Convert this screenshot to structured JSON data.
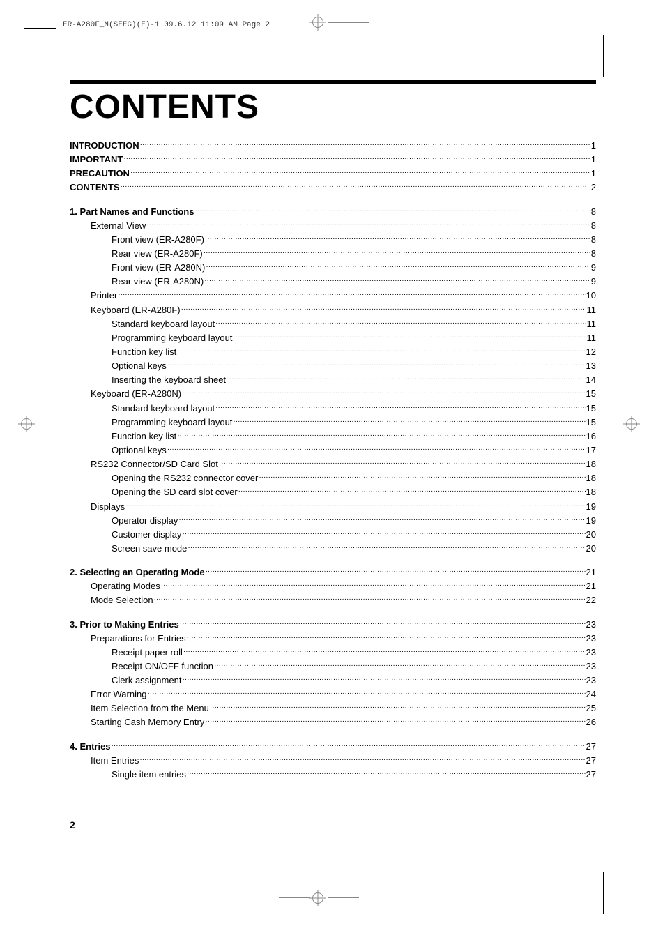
{
  "header_slug": "ER-A280F_N(SEEG)(E)-1  09.6.12 11:09 AM  Page 2",
  "title": "CONTENTS",
  "page_number": "2",
  "toc": [
    {
      "label": "INTRODUCTION",
      "page": "1",
      "level": 0,
      "bold": true
    },
    {
      "label": "IMPORTANT",
      "page": "1",
      "level": 0,
      "bold": true
    },
    {
      "label": "PRECAUTION",
      "page": "1",
      "level": 0,
      "bold": true
    },
    {
      "label": "CONTENTS",
      "page": "2",
      "level": 0,
      "bold": true
    },
    {
      "spacer": true
    },
    {
      "label": "1.  Part Names and Functions",
      "page": "8",
      "level": 0,
      "bold": true
    },
    {
      "label": "External View",
      "page": "8",
      "level": 1
    },
    {
      "label": "Front view (ER-A280F)",
      "page": "8",
      "level": 2
    },
    {
      "label": "Rear view (ER-A280F)",
      "page": "8",
      "level": 2
    },
    {
      "label": "Front view (ER-A280N)",
      "page": "9",
      "level": 2
    },
    {
      "label": "Rear view (ER-A280N)",
      "page": "9",
      "level": 2
    },
    {
      "label": "Printer",
      "page": "10",
      "level": 1
    },
    {
      "label": "Keyboard (ER-A280F)",
      "page": "11",
      "level": 1
    },
    {
      "label": "Standard keyboard layout",
      "page": "11",
      "level": 2
    },
    {
      "label": "Programming keyboard layout",
      "page": "11",
      "level": 2
    },
    {
      "label": "Function key list",
      "page": "12",
      "level": 2
    },
    {
      "label": "Optional keys",
      "page": "13",
      "level": 2
    },
    {
      "label": "Inserting the keyboard sheet",
      "page": "14",
      "level": 2
    },
    {
      "label": "Keyboard (ER-A280N)",
      "page": "15",
      "level": 1
    },
    {
      "label": "Standard keyboard layout",
      "page": "15",
      "level": 2
    },
    {
      "label": "Programming keyboard layout",
      "page": "15",
      "level": 2
    },
    {
      "label": "Function key list",
      "page": "16",
      "level": 2
    },
    {
      "label": "Optional keys",
      "page": "17",
      "level": 2
    },
    {
      "label": "RS232 Connector/SD Card Slot",
      "page": "18",
      "level": 1
    },
    {
      "label": "Opening the RS232 connector cover",
      "page": "18",
      "level": 2
    },
    {
      "label": "Opening the SD card slot cover",
      "page": "18",
      "level": 2
    },
    {
      "label": "Displays",
      "page": "19",
      "level": 1
    },
    {
      "label": "Operator display",
      "page": "19",
      "level": 2
    },
    {
      "label": "Customer display",
      "page": "20",
      "level": 2
    },
    {
      "label": "Screen save mode",
      "page": "20",
      "level": 2
    },
    {
      "spacer": true
    },
    {
      "label": "2.  Selecting an Operating Mode",
      "page": "21",
      "level": 0,
      "bold": true
    },
    {
      "label": "Operating Modes",
      "page": "21",
      "level": 1
    },
    {
      "label": "Mode Selection",
      "page": "22",
      "level": 1
    },
    {
      "spacer": true
    },
    {
      "label": "3.  Prior to Making Entries",
      "page": "23",
      "level": 0,
      "bold": true
    },
    {
      "label": "Preparations for Entries",
      "page": "23",
      "level": 1
    },
    {
      "label": "Receipt paper roll",
      "page": "23",
      "level": 2
    },
    {
      "label": "Receipt ON/OFF function",
      "page": "23",
      "level": 2
    },
    {
      "label": "Clerk assignment",
      "page": "23",
      "level": 2
    },
    {
      "label": "Error Warning",
      "page": "24",
      "level": 1
    },
    {
      "label": "Item Selection from the Menu",
      "page": "25",
      "level": 1
    },
    {
      "label": "Starting Cash Memory Entry",
      "page": "26",
      "level": 1
    },
    {
      "spacer": true
    },
    {
      "label": "4.  Entries",
      "page": "27",
      "level": 0,
      "bold": true
    },
    {
      "label": "Item Entries",
      "page": "27",
      "level": 1
    },
    {
      "label": "Single item entries",
      "page": "27",
      "level": 2
    }
  ]
}
